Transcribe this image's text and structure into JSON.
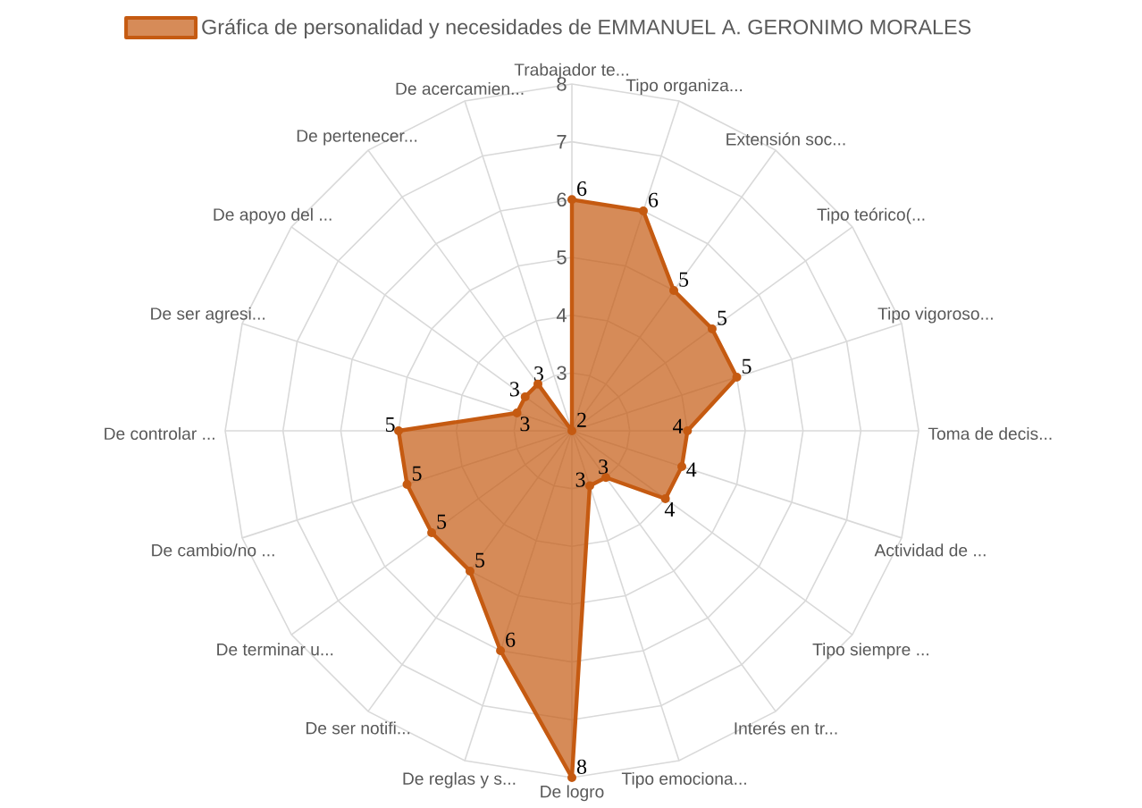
{
  "chart_data": {
    "type": "radar",
    "categories": [
      "Trabajador te...",
      "Tipo organiza...",
      "Extensión soc...",
      "Tipo teórico(...",
      "Tipo vigoroso...",
      "Toma de decis...",
      "Actividad de ...",
      "Tipo siempre ...",
      "Interés en tr...",
      "Tipo emociona...",
      "De logro",
      "De reglas y s...",
      "De ser notifi...",
      "De terminar u...",
      "De cambio/no ...",
      "De controlar ...",
      "De ser agresi...",
      "De apoyo del ...",
      "De pertenecer...",
      "De acercamien..."
    ],
    "series": [
      {
        "name": "Gráfica de personalidad y necesidades de EMMANUEL A. GERONIMO MORALES",
        "color": "#c55a11",
        "values": [
          6,
          6,
          5,
          5,
          5,
          4,
          4,
          4,
          3,
          3,
          8,
          6,
          5,
          5,
          5,
          5,
          3,
          3,
          3,
          2
        ]
      }
    ],
    "ylim": [
      2,
      8
    ],
    "yticks": [
      3,
      4,
      5,
      6,
      7,
      8
    ],
    "grid": true,
    "legend": "top",
    "marker": "circle",
    "data_labels": true
  }
}
